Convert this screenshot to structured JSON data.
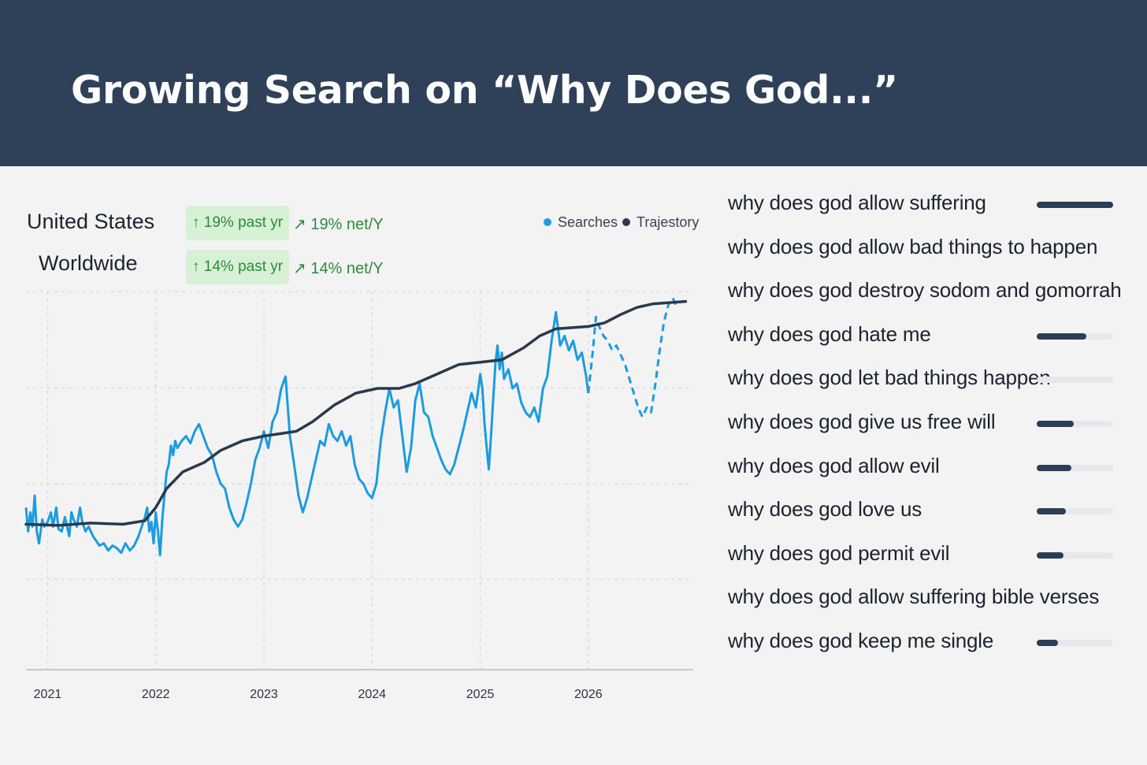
{
  "header": {
    "title": "Growing Search on “Why Does God...”"
  },
  "regions": [
    {
      "name": "United States",
      "change_label": "↑ 19% past yr",
      "net_label": "↗ 19% net/Y"
    },
    {
      "name": "Worldwide",
      "change_label": "↑ 14% past yr",
      "net_label": "↗ 14% net/Y"
    }
  ],
  "legend": [
    {
      "label": "Searches",
      "color": "#1b9be0"
    },
    {
      "label": "Trajestory",
      "color": "#2a3a4c"
    }
  ],
  "chart_data": {
    "type": "line",
    "x_ticks": [
      "2021",
      "2022",
      "2023",
      "2024",
      "2025",
      "2026"
    ],
    "x_tick_values": [
      2021.0,
      2022.0,
      2023.0,
      2024.0,
      2025.0,
      2026.0
    ],
    "xlim": [
      2020.8,
      2026.97
    ],
    "ylim": [
      0,
      120
    ],
    "grid": true,
    "series": [
      {
        "name": "Searches",
        "color": "#1b9be0",
        "style": "solid",
        "points": [
          [
            2020.8,
            30
          ],
          [
            2020.82,
            20
          ],
          [
            2020.84,
            28
          ],
          [
            2020.86,
            22
          ],
          [
            2020.88,
            35
          ],
          [
            2020.9,
            20
          ],
          [
            2020.92,
            15
          ],
          [
            2020.95,
            25
          ],
          [
            2020.97,
            22
          ],
          [
            2021.0,
            24
          ],
          [
            2021.03,
            28
          ],
          [
            2021.05,
            22
          ],
          [
            2021.08,
            30
          ],
          [
            2021.1,
            21
          ],
          [
            2021.13,
            20
          ],
          [
            2021.16,
            26
          ],
          [
            2021.18,
            22
          ],
          [
            2021.2,
            18
          ],
          [
            2021.22,
            28
          ],
          [
            2021.24,
            25
          ],
          [
            2021.27,
            22
          ],
          [
            2021.3,
            30
          ],
          [
            2021.32,
            24
          ],
          [
            2021.35,
            20
          ],
          [
            2021.38,
            22
          ],
          [
            2021.42,
            18
          ],
          [
            2021.45,
            16
          ],
          [
            2021.48,
            14
          ],
          [
            2021.52,
            15
          ],
          [
            2021.56,
            12
          ],
          [
            2021.6,
            14
          ],
          [
            2021.64,
            13
          ],
          [
            2021.68,
            11
          ],
          [
            2021.72,
            15
          ],
          [
            2021.76,
            12
          ],
          [
            2021.8,
            14
          ],
          [
            2021.84,
            18
          ],
          [
            2021.87,
            22
          ],
          [
            2021.9,
            26
          ],
          [
            2021.92,
            30
          ],
          [
            2021.94,
            20
          ],
          [
            2021.96,
            24
          ],
          [
            2021.98,
            15
          ],
          [
            2022.0,
            28
          ],
          [
            2022.02,
            20
          ],
          [
            2022.04,
            10
          ],
          [
            2022.06,
            25
          ],
          [
            2022.08,
            35
          ],
          [
            2022.1,
            45
          ],
          [
            2022.12,
            48
          ],
          [
            2022.14,
            56
          ],
          [
            2022.16,
            52
          ],
          [
            2022.18,
            58
          ],
          [
            2022.2,
            55
          ],
          [
            2022.24,
            58
          ],
          [
            2022.28,
            60
          ],
          [
            2022.32,
            57
          ],
          [
            2022.36,
            62
          ],
          [
            2022.4,
            65
          ],
          [
            2022.44,
            60
          ],
          [
            2022.48,
            55
          ],
          [
            2022.52,
            52
          ],
          [
            2022.56,
            45
          ],
          [
            2022.6,
            40
          ],
          [
            2022.64,
            38
          ],
          [
            2022.68,
            30
          ],
          [
            2022.72,
            25
          ],
          [
            2022.76,
            22
          ],
          [
            2022.8,
            25
          ],
          [
            2022.84,
            32
          ],
          [
            2022.88,
            40
          ],
          [
            2022.92,
            50
          ],
          [
            2022.96,
            55
          ],
          [
            2023.0,
            62
          ],
          [
            2023.04,
            55
          ],
          [
            2023.08,
            66
          ],
          [
            2023.12,
            70
          ],
          [
            2023.16,
            80
          ],
          [
            2023.2,
            85
          ],
          [
            2023.24,
            60
          ],
          [
            2023.28,
            48
          ],
          [
            2023.32,
            35
          ],
          [
            2023.36,
            28
          ],
          [
            2023.4,
            34
          ],
          [
            2023.44,
            42
          ],
          [
            2023.48,
            50
          ],
          [
            2023.52,
            58
          ],
          [
            2023.56,
            56
          ],
          [
            2023.6,
            65
          ],
          [
            2023.64,
            60
          ],
          [
            2023.68,
            58
          ],
          [
            2023.72,
            62
          ],
          [
            2023.76,
            56
          ],
          [
            2023.8,
            60
          ],
          [
            2023.84,
            48
          ],
          [
            2023.88,
            42
          ],
          [
            2023.92,
            40
          ],
          [
            2023.96,
            36
          ],
          [
            2024.0,
            34
          ],
          [
            2024.04,
            40
          ],
          [
            2024.08,
            58
          ],
          [
            2024.12,
            70
          ],
          [
            2024.16,
            80
          ],
          [
            2024.2,
            72
          ],
          [
            2024.24,
            75
          ],
          [
            2024.28,
            60
          ],
          [
            2024.32,
            45
          ],
          [
            2024.36,
            55
          ],
          [
            2024.4,
            75
          ],
          [
            2024.44,
            82
          ],
          [
            2024.48,
            70
          ],
          [
            2024.52,
            68
          ],
          [
            2024.56,
            60
          ],
          [
            2024.6,
            55
          ],
          [
            2024.64,
            50
          ],
          [
            2024.68,
            46
          ],
          [
            2024.72,
            44
          ],
          [
            2024.76,
            48
          ],
          [
            2024.8,
            55
          ],
          [
            2024.84,
            62
          ],
          [
            2024.88,
            70
          ],
          [
            2024.92,
            78
          ],
          [
            2024.96,
            72
          ],
          [
            2025.0,
            86
          ],
          [
            2025.02,
            80
          ],
          [
            2025.04,
            65
          ],
          [
            2025.06,
            55
          ],
          [
            2025.08,
            46
          ],
          [
            2025.1,
            60
          ],
          [
            2025.12,
            75
          ],
          [
            2025.14,
            90
          ],
          [
            2025.16,
            98
          ],
          [
            2025.18,
            88
          ],
          [
            2025.2,
            95
          ],
          [
            2025.22,
            84
          ],
          [
            2025.26,
            88
          ],
          [
            2025.3,
            80
          ],
          [
            2025.34,
            82
          ],
          [
            2025.38,
            74
          ],
          [
            2025.42,
            70
          ],
          [
            2025.46,
            68
          ],
          [
            2025.5,
            72
          ],
          [
            2025.54,
            66
          ],
          [
            2025.58,
            80
          ],
          [
            2025.62,
            85
          ],
          [
            2025.66,
            100
          ],
          [
            2025.7,
            112
          ],
          [
            2025.74,
            98
          ],
          [
            2025.78,
            102
          ],
          [
            2025.82,
            96
          ],
          [
            2025.86,
            100
          ],
          [
            2025.9,
            92
          ],
          [
            2025.94,
            95
          ],
          [
            2025.98,
            85
          ],
          [
            2026.0,
            78
          ]
        ]
      },
      {
        "name": "Searches (projected)",
        "color": "#1b9be0",
        "style": "dashed",
        "points": [
          [
            2026.0,
            78
          ],
          [
            2026.04,
            95
          ],
          [
            2026.07,
            110
          ],
          [
            2026.1,
            106
          ],
          [
            2026.14,
            102
          ],
          [
            2026.18,
            100
          ],
          [
            2026.22,
            96
          ],
          [
            2026.26,
            98
          ],
          [
            2026.3,
            94
          ],
          [
            2026.34,
            90
          ],
          [
            2026.38,
            84
          ],
          [
            2026.42,
            78
          ],
          [
            2026.46,
            72
          ],
          [
            2026.5,
            68
          ],
          [
            2026.54,
            72
          ],
          [
            2026.58,
            70
          ],
          [
            2026.62,
            82
          ],
          [
            2026.66,
            96
          ],
          [
            2026.7,
            108
          ],
          [
            2026.74,
            115
          ],
          [
            2026.78,
            118
          ],
          [
            2026.82,
            114
          ]
        ]
      },
      {
        "name": "Trajestory",
        "color": "#2a3a4c",
        "style": "solid",
        "points": [
          [
            2020.8,
            23
          ],
          [
            2021.1,
            22.5
          ],
          [
            2021.4,
            23.5
          ],
          [
            2021.7,
            23
          ],
          [
            2021.9,
            24.5
          ],
          [
            2022.0,
            30
          ],
          [
            2022.1,
            38
          ],
          [
            2022.25,
            45
          ],
          [
            2022.45,
            49
          ],
          [
            2022.6,
            54
          ],
          [
            2022.8,
            58
          ],
          [
            2023.0,
            60
          ],
          [
            2023.15,
            61
          ],
          [
            2023.3,
            62
          ],
          [
            2023.45,
            66
          ],
          [
            2023.65,
            73
          ],
          [
            2023.85,
            78
          ],
          [
            2024.05,
            80
          ],
          [
            2024.25,
            80
          ],
          [
            2024.4,
            82
          ],
          [
            2024.6,
            86
          ],
          [
            2024.8,
            90
          ],
          [
            2025.0,
            91
          ],
          [
            2025.2,
            92
          ],
          [
            2025.4,
            97
          ],
          [
            2025.55,
            102
          ],
          [
            2025.7,
            105
          ],
          [
            2025.85,
            105.5
          ],
          [
            2026.0,
            106
          ],
          [
            2026.15,
            107.5
          ],
          [
            2026.3,
            111
          ],
          [
            2026.45,
            114
          ],
          [
            2026.6,
            115.5
          ],
          [
            2026.75,
            116
          ],
          [
            2026.9,
            116.5
          ]
        ]
      }
    ]
  },
  "queries": [
    {
      "text": "why does god allow suffering",
      "bar": 1.0,
      "has_bar": true
    },
    {
      "text": "why does god allow bad things to happen",
      "bar": 0,
      "has_bar": false
    },
    {
      "text": "why does god destroy sodom and gomorrah",
      "bar": 0,
      "has_bar": false
    },
    {
      "text": "why does god hate me",
      "bar": 0.65,
      "has_bar": true
    },
    {
      "text": "why does god let bad things happen",
      "bar": 0,
      "has_bar": true
    },
    {
      "text": "why does god give us free will",
      "bar": 0.48,
      "has_bar": true
    },
    {
      "text": "why does god allow evil",
      "bar": 0.45,
      "has_bar": true
    },
    {
      "text": "why does god love us",
      "bar": 0.38,
      "has_bar": true
    },
    {
      "text": "why does god permit evil",
      "bar": 0.35,
      "has_bar": true
    },
    {
      "text": "why does god allow suffering bible verses",
      "bar": 0,
      "has_bar": false
    },
    {
      "text": "why does god keep me single",
      "bar": 0.28,
      "has_bar": true
    }
  ]
}
